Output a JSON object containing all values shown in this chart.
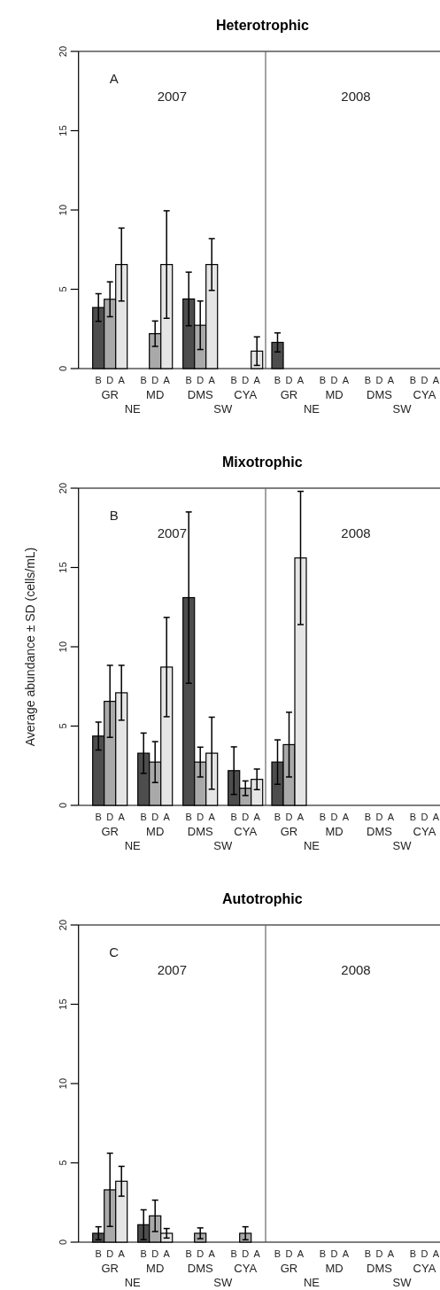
{
  "chart_data": [
    {
      "type": "bar",
      "title": "Heterotrophic",
      "categories": [
        "GR",
        "MD",
        "DMS",
        "CYA"
      ],
      "ylim": [
        0,
        20
      ],
      "yticks": [
        0,
        5,
        10,
        15,
        20
      ],
      "annotations": [
        "A",
        "2007",
        "NE",
        "SW"
      ],
      "series": [
        {
          "name": "B",
          "color": "#4d4d4d",
          "values": [
            3.85,
            null,
            4.39,
            null
          ],
          "errors": [
            0.87,
            null,
            1.69,
            null
          ]
        },
        {
          "name": "D",
          "color": "#a9a9a9",
          "values": [
            4.37,
            2.2,
            2.73,
            null
          ],
          "errors": [
            1.1,
            0.8,
            1.53,
            null
          ]
        },
        {
          "name": "A",
          "color": "#e5e5e5",
          "values": [
            6.56,
            6.56,
            6.56,
            1.1
          ],
          "errors": [
            2.3,
            3.39,
            1.63,
            0.9
          ]
        }
      ]
    },
    {
      "type": "bar",
      "categories": [
        "GR",
        "MD",
        "DMS",
        "CYA"
      ],
      "ylim": [
        0,
        20
      ],
      "tick_labels": "x",
      "annotations": [
        "2008",
        "NE",
        "SW"
      ],
      "series": [
        {
          "name": "B",
          "color": "#4d4d4d",
          "values": [
            1.65,
            null,
            null,
            null
          ],
          "errors": [
            0.6,
            null,
            null,
            null
          ]
        },
        {
          "name": "D",
          "values": [
            null,
            null,
            null,
            null
          ]
        },
        {
          "name": "A",
          "values": [
            null,
            null,
            null,
            null
          ]
        }
      ]
    },
    {
      "type": "bar",
      "title": "Mixotrophic",
      "ylabel": "Average abundance ± SD (cells/mL)",
      "categories": [
        "GR",
        "MD",
        "DMS",
        "CYA"
      ],
      "ylim": [
        0,
        20
      ],
      "yticks": [
        0,
        5,
        10,
        15,
        20
      ],
      "annotations": [
        "B",
        "2007",
        "NE",
        "SW"
      ],
      "series": [
        {
          "name": "B",
          "color": "#4d4d4d",
          "values": [
            4.37,
            3.29,
            13.1,
            2.19
          ],
          "errors": [
            0.88,
            1.27,
            5.4,
            1.5
          ]
        },
        {
          "name": "D",
          "color": "#a9a9a9",
          "values": [
            6.56,
            2.73,
            2.73,
            1.08
          ],
          "errors": [
            2.27,
            1.29,
            0.94,
            0.46
          ]
        },
        {
          "name": "A",
          "color": "#e5e5e5",
          "values": [
            7.1,
            8.72,
            3.29,
            1.64
          ],
          "errors": [
            1.73,
            3.13,
            2.27,
            0.65
          ]
        }
      ]
    },
    {
      "type": "bar",
      "categories": [
        "GR",
        "MD",
        "DMS",
        "CYA"
      ],
      "ylim": [
        0,
        20
      ],
      "tick_labels": "x",
      "annotations": [
        "2008",
        "NE",
        "SW"
      ],
      "series": [
        {
          "name": "B",
          "color": "#4d4d4d",
          "values": [
            2.73,
            null,
            null,
            null
          ],
          "errors": [
            1.4,
            null,
            null,
            null
          ]
        },
        {
          "name": "D",
          "color": "#a9a9a9",
          "values": [
            3.83,
            null,
            null,
            null
          ],
          "errors": [
            2.04,
            null,
            null,
            null
          ]
        },
        {
          "name": "A",
          "color": "#e5e5e5",
          "values": [
            15.6,
            null,
            null,
            null
          ],
          "errors": [
            4.2,
            null,
            null,
            null
          ]
        }
      ]
    },
    {
      "type": "bar",
      "title": "Autotrophic",
      "categories": [
        "GR",
        "MD",
        "DMS",
        "CYA"
      ],
      "ylim": [
        0,
        20
      ],
      "yticks": [
        0,
        5,
        10,
        15,
        20
      ],
      "annotations": [
        "C",
        "2007",
        "NE",
        "SW"
      ],
      "series": [
        {
          "name": "B",
          "color": "#4d4d4d",
          "values": [
            0.56,
            1.1,
            null,
            null
          ],
          "errors": [
            0.41,
            0.94,
            null,
            null
          ]
        },
        {
          "name": "D",
          "color": "#a9a9a9",
          "values": [
            3.3,
            1.66,
            0.56,
            0.56
          ],
          "errors": [
            2.31,
            0.99,
            0.34,
            0.41
          ]
        },
        {
          "name": "A",
          "color": "#e5e5e5",
          "values": [
            3.84,
            0.56,
            null,
            null
          ],
          "errors": [
            0.94,
            0.3,
            null,
            null
          ]
        }
      ]
    },
    {
      "type": "bar",
      "categories": [
        "GR",
        "MD",
        "DMS",
        "CYA"
      ],
      "ylim": [
        0,
        20
      ],
      "tick_labels": "x",
      "annotations": [
        "2008",
        "NE",
        "SW"
      ],
      "series": [
        {
          "name": "B",
          "values": [
            null,
            null,
            null,
            null
          ]
        },
        {
          "name": "D",
          "values": [
            null,
            null,
            null,
            null
          ]
        },
        {
          "name": "A",
          "values": [
            null,
            null,
            null,
            null
          ]
        }
      ]
    }
  ]
}
